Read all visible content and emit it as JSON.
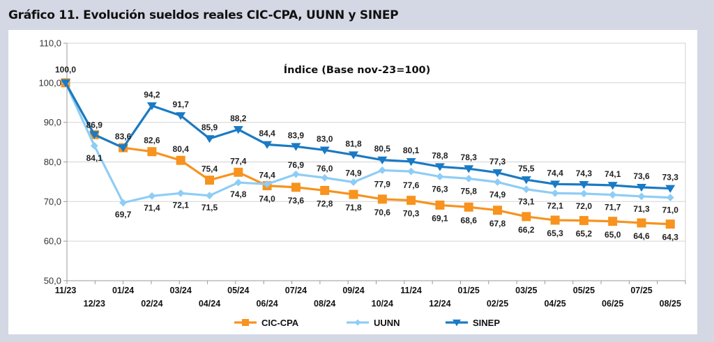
{
  "figure": {
    "title": "Gráfico 11. Evolución sueldos reales CIC-CPA, UUNN y SINEP"
  },
  "chart_data": {
    "type": "line",
    "title": "Gráfico 11. Evolución sueldos reales CIC-CPA, UUNN y SINEP",
    "subtitle": "Índice (Base nov-23=100)",
    "xlabel": "",
    "ylabel": "",
    "ylim": [
      50,
      110
    ],
    "yticks": [
      "50,0",
      "60,0",
      "70,0",
      "80,0",
      "90,0",
      "100,0",
      "110,0"
    ],
    "ytick_values": [
      50,
      60,
      70,
      80,
      90,
      100,
      110
    ],
    "grid": true,
    "legend_position": "bottom",
    "categories": [
      "11/23",
      "12/23",
      "01/24",
      "02/24",
      "03/24",
      "04/24",
      "05/24",
      "06/24",
      "07/24",
      "08/24",
      "09/24",
      "10/24",
      "11/24",
      "12/24",
      "01/25",
      "02/25",
      "03/25",
      "04/25",
      "05/25",
      "06/25",
      "07/25",
      "08/25"
    ],
    "series": [
      {
        "name": "CIC-CPA",
        "color": "#f7931e",
        "marker": "square",
        "values": [
          100.0,
          86.9,
          83.6,
          82.6,
          80.4,
          75.4,
          77.4,
          74.0,
          73.6,
          72.8,
          71.8,
          70.6,
          70.3,
          69.1,
          68.6,
          67.8,
          66.2,
          65.3,
          65.2,
          65.0,
          64.6,
          64.3
        ],
        "labels": [
          "",
          "",
          "83,6",
          "82,6",
          "80,4",
          "75,4",
          "77,4",
          "74,0",
          "73,6",
          "72,8",
          "71,8",
          "70,6",
          "70,3",
          "69,1",
          "68,6",
          "67,8",
          "66,2",
          "65,3",
          "65,2",
          "65,0",
          "64,6",
          "64,3"
        ]
      },
      {
        "name": "UUNN",
        "color": "#8ecdf5",
        "marker": "diamond",
        "values": [
          100.0,
          84.1,
          69.7,
          71.4,
          72.1,
          71.5,
          74.8,
          74.4,
          76.9,
          76.0,
          74.9,
          77.9,
          77.6,
          76.3,
          75.8,
          74.9,
          73.1,
          72.1,
          72.0,
          71.7,
          71.3,
          71.0
        ],
        "labels": [
          "",
          "84,1",
          "69,7",
          "71,4",
          "72,1",
          "71,5",
          "74,8",
          "74,4",
          "76,9",
          "76,0",
          "74,9",
          "77,9",
          "77,6",
          "76,3",
          "75,8",
          "74,9",
          "73,1",
          "72,1",
          "72,0",
          "71,7",
          "71,3",
          "71,0"
        ]
      },
      {
        "name": "SINEP",
        "color": "#1a7ac4",
        "marker": "triangle-down",
        "values": [
          100.0,
          86.9,
          83.6,
          94.2,
          91.7,
          85.9,
          88.2,
          84.4,
          83.9,
          83.0,
          81.8,
          80.5,
          80.1,
          78.8,
          78.3,
          77.3,
          75.5,
          74.4,
          74.3,
          74.1,
          73.6,
          73.3
        ],
        "labels": [
          "100,0",
          "86,9",
          "",
          "94,2",
          "91,7",
          "85,9",
          "88,2",
          "84,4",
          "83,9",
          "83,0",
          "81,8",
          "80,5",
          "80,1",
          "78,8",
          "78,3",
          "77,3",
          "75,5",
          "74,4",
          "74,3",
          "74,1",
          "73,6",
          "73,3"
        ]
      }
    ]
  }
}
